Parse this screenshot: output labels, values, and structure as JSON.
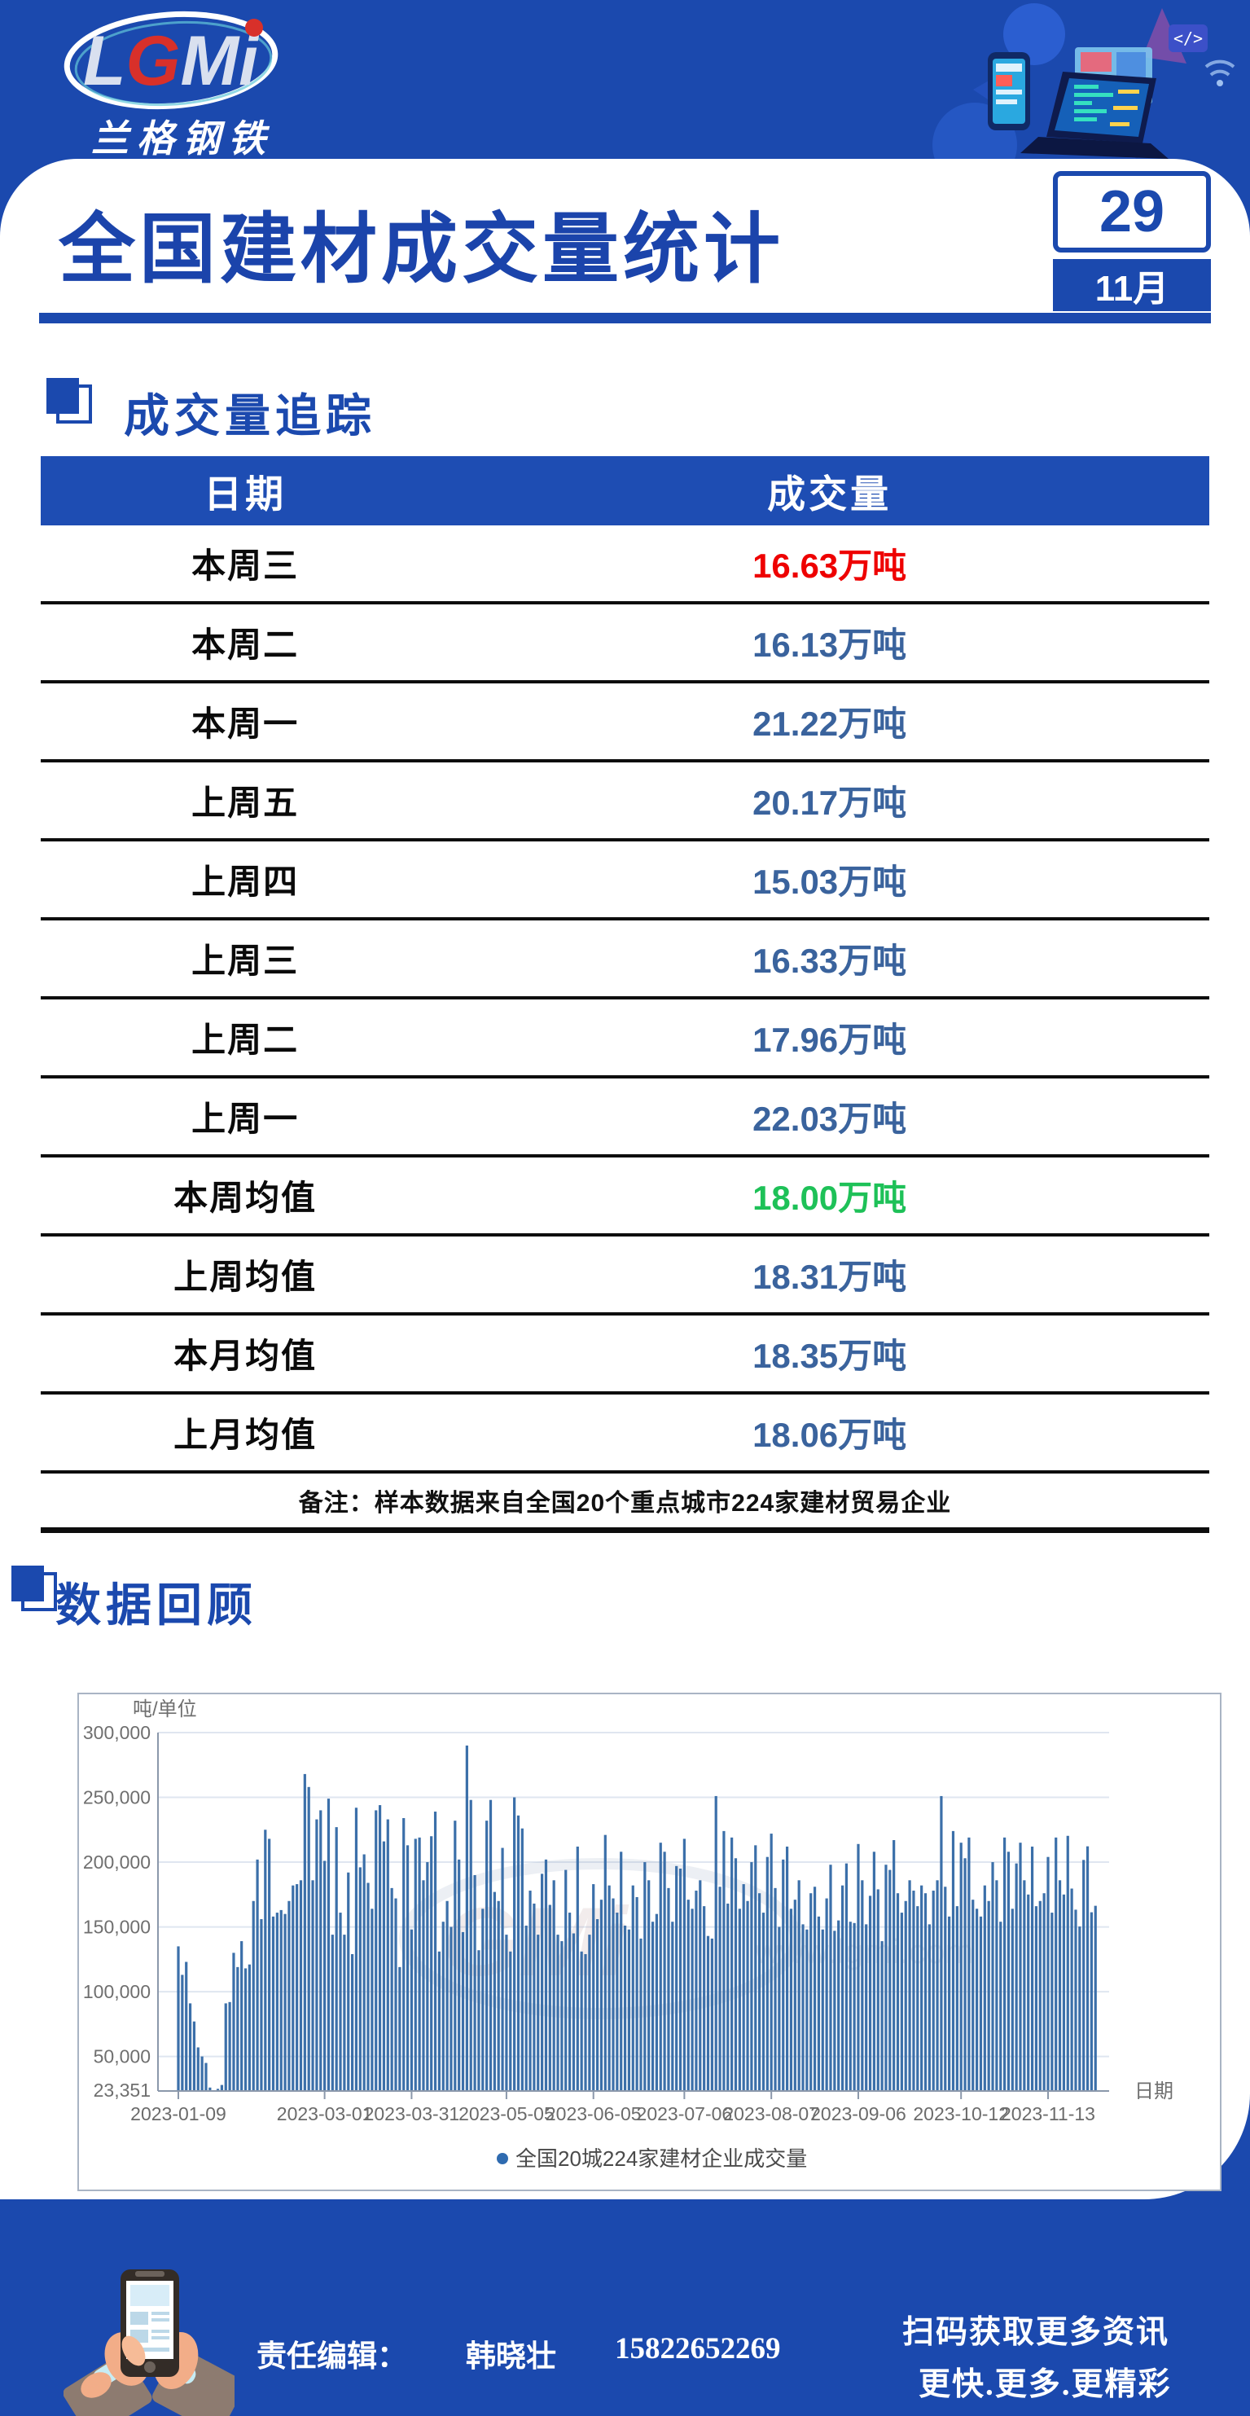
{
  "colors": {
    "brand_blue": "#1b49ae",
    "table_header_blue": "#1e4db3",
    "value_blue": "#3a639d",
    "highlight_red": "#ee0000",
    "highlight_green": "#1ec158",
    "bar_blue": "#3b6fa9"
  },
  "header": {
    "logo_text": "LGMi",
    "logo_sub": "兰格钢铁"
  },
  "title_bar": {
    "title": "全国建材成交量统计",
    "day": "29",
    "month": "11月"
  },
  "section1": {
    "title": "成交量追踪",
    "table": {
      "headers": [
        "日期",
        "成交量"
      ],
      "rows": [
        {
          "label": "本周三",
          "value": "16.63万吨",
          "color": "red"
        },
        {
          "label": "本周二",
          "value": "16.13万吨",
          "color": "blue"
        },
        {
          "label": "本周一",
          "value": "21.22万吨",
          "color": "blue"
        },
        {
          "label": "上周五",
          "value": "20.17万吨",
          "color": "blue"
        },
        {
          "label": "上周四",
          "value": "15.03万吨",
          "color": "blue"
        },
        {
          "label": "上周三",
          "value": "16.33万吨",
          "color": "blue"
        },
        {
          "label": "上周二",
          "value": "17.96万吨",
          "color": "blue"
        },
        {
          "label": "上周一",
          "value": "22.03万吨",
          "color": "blue"
        },
        {
          "label": "本周均值",
          "value": "18.00万吨",
          "color": "green"
        },
        {
          "label": "上周均值",
          "value": "18.31万吨",
          "color": "blue"
        },
        {
          "label": "本月均值",
          "value": "18.35万吨",
          "color": "blue"
        },
        {
          "label": "上月均值",
          "value": "18.06万吨",
          "color": "blue"
        }
      ],
      "note": "备注：样本数据来自全国20个重点城市224家建材贸易企业"
    }
  },
  "section2": {
    "title": "数据回顾"
  },
  "chart_data": {
    "type": "bar",
    "unit_label": "吨/单位",
    "x_axis_label": "日期",
    "legend": "全国20城224家建材企业成交量",
    "watermark": "www.lgmi.com",
    "y_min": 23351,
    "y_min_label": "23,351",
    "y_ticks": [
      50000,
      100000,
      150000,
      200000,
      250000,
      300000
    ],
    "y_tick_labels": [
      "50,000",
      "100,000",
      "150,000",
      "200,000",
      "250,000",
      "300,000"
    ],
    "ylim": [
      23351,
      300000
    ],
    "x_tick_labels": [
      "2023-01-09",
      "2023-03-01",
      "2023-03-31",
      "2023-05-05",
      "2023-06-05",
      "2023-07-06",
      "2023-08-07",
      "2023-09-06",
      "2023-10-12",
      "2023-11-13"
    ],
    "x_tick_indices": [
      0,
      37,
      59,
      83,
      105,
      128,
      150,
      172,
      198,
      220
    ],
    "values": [
      135000,
      113000,
      123000,
      91000,
      77000,
      57000,
      50000,
      45000,
      26000,
      23351,
      25000,
      28000,
      91000,
      92000,
      130000,
      119000,
      139000,
      118000,
      121000,
      170000,
      202000,
      156000,
      225000,
      218000,
      158000,
      161000,
      163000,
      160000,
      170000,
      182000,
      183000,
      186000,
      268000,
      258000,
      186000,
      233000,
      240000,
      201000,
      249000,
      144000,
      227000,
      161000,
      144000,
      192000,
      129000,
      242000,
      196000,
      206000,
      184000,
      164000,
      240000,
      244000,
      216000,
      233000,
      180000,
      172000,
      119000,
      234000,
      213000,
      148000,
      218000,
      219000,
      186000,
      200000,
      220000,
      239000,
      131000,
      154000,
      170000,
      150000,
      232000,
      202000,
      146000,
      290000,
      248000,
      190000,
      132000,
      164000,
      232000,
      248000,
      177000,
      170000,
      211000,
      144000,
      131000,
      250000,
      236000,
      226000,
      151000,
      178000,
      168000,
      144000,
      191000,
      202000,
      167000,
      186000,
      144000,
      139000,
      194000,
      161000,
      145000,
      212000,
      131000,
      129000,
      144000,
      183000,
      156000,
      171000,
      221000,
      182000,
      172000,
      161000,
      208000,
      151000,
      148000,
      182000,
      173000,
      141000,
      200000,
      186000,
      154000,
      160000,
      215000,
      208000,
      180000,
      154000,
      197000,
      195000,
      218000,
      171000,
      164000,
      178000,
      186000,
      166000,
      143000,
      141000,
      251000,
      181000,
      224000,
      168000,
      219000,
      203000,
      164000,
      183000,
      170000,
      200000,
      213000,
      176000,
      161000,
      204000,
      222000,
      180000,
      150000,
      202000,
      212000,
      164000,
      171000,
      186000,
      152000,
      148000,
      176000,
      181000,
      158000,
      148000,
      172000,
      198000,
      147000,
      155000,
      182000,
      199000,
      154000,
      153000,
      214000,
      186000,
      152000,
      174000,
      208000,
      179000,
      139000,
      198000,
      194000,
      217000,
      176000,
      161000,
      170000,
      186000,
      178000,
      166000,
      182000,
      176000,
      152000,
      178000,
      186000,
      251000,
      181000,
      158000,
      224000,
      166000,
      215000,
      203000,
      219000,
      171000,
      164000,
      158000,
      182000,
      170000,
      200000,
      186000,
      154000,
      219000,
      208000,
      164000,
      199000,
      215000,
      186000,
      175000,
      212000,
      166000,
      170000,
      176000,
      204000,
      161000,
      219000,
      186000,
      175000,
      220300,
      179600,
      163300,
      150300,
      201700,
      212200,
      161300,
      166300
    ]
  },
  "footer": {
    "editor_label": "责任编辑：",
    "editor_name": "韩晓壮",
    "phone": "15822652269",
    "slogan1": "扫码获取更多资讯",
    "slogan2": "更快.更多.更精彩"
  }
}
